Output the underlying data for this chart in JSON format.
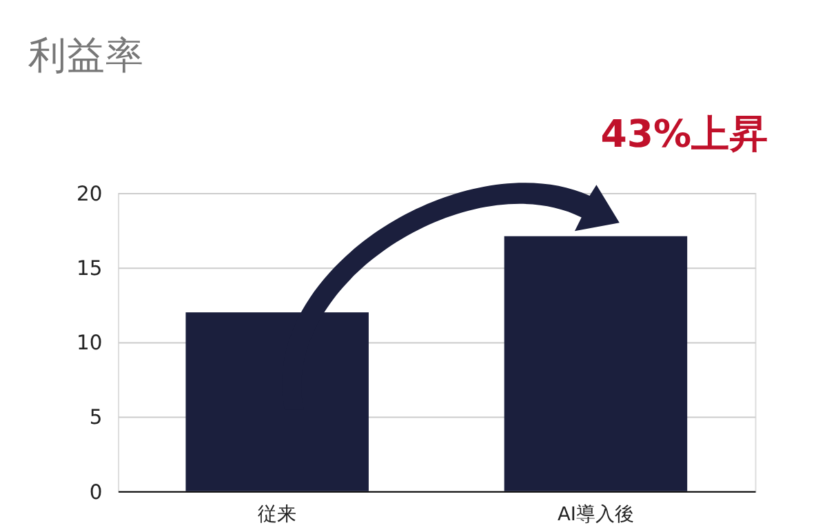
{
  "chart_data": {
    "type": "bar",
    "title": "利益率",
    "categories": [
      "従来",
      "AI導入後"
    ],
    "values": [
      12.0,
      17.1
    ],
    "color": "#1b1f3d",
    "ylim": [
      0,
      20
    ],
    "yticks": [
      0,
      5,
      10,
      15,
      20
    ],
    "grid": "y",
    "annotations": [
      "43%上昇"
    ]
  }
}
